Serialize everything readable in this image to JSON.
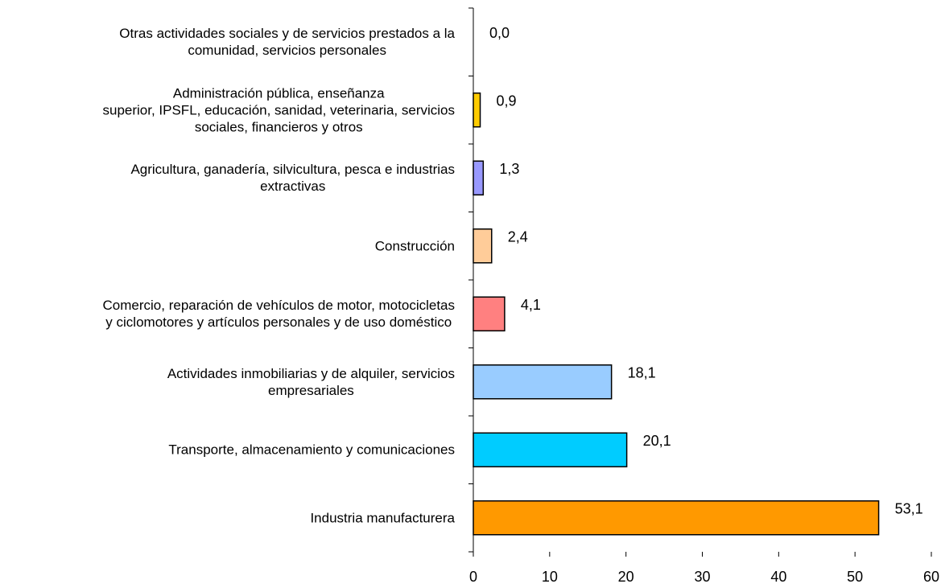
{
  "chart_data": {
    "type": "bar",
    "orientation": "horizontal",
    "categories": [
      "Otras actividades sociales y de servicios prestados a la\ncomunidad, servicios personales",
      "Administración pública, enseñanza\nsuperior, IPSFL, educación, sanidad, veterinaria, servicios\nsociales, financieros y otros",
      "Agricultura, ganadería, silvicultura, pesca e industrias\nextractivas",
      "Construcción",
      "Comercio, reparación de vehículos de motor, motocicletas\ny ciclomotores y artículos personales y de uso doméstico",
      "Actividades inmobiliarias y de alquiler, servicios\nempresariales",
      "Transporte, almacenamiento y comunicaciones",
      "Industria manufacturera"
    ],
    "values": [
      0.0,
      0.9,
      1.3,
      2.4,
      4.1,
      18.1,
      20.1,
      53.1
    ],
    "value_labels": [
      "0,0",
      "0,9",
      "1,3",
      "2,4",
      "4,1",
      "18,1",
      "20,1",
      "53,1"
    ],
    "colors": [
      "#000000",
      "#ffcc00",
      "#9999ff",
      "#ffcc99",
      "#ff8080",
      "#99ccff",
      "#00ccff",
      "#ff9900"
    ],
    "xlim": [
      0,
      60
    ],
    "xticks": [
      0,
      10,
      20,
      30,
      40,
      50,
      60
    ],
    "grid": false
  }
}
